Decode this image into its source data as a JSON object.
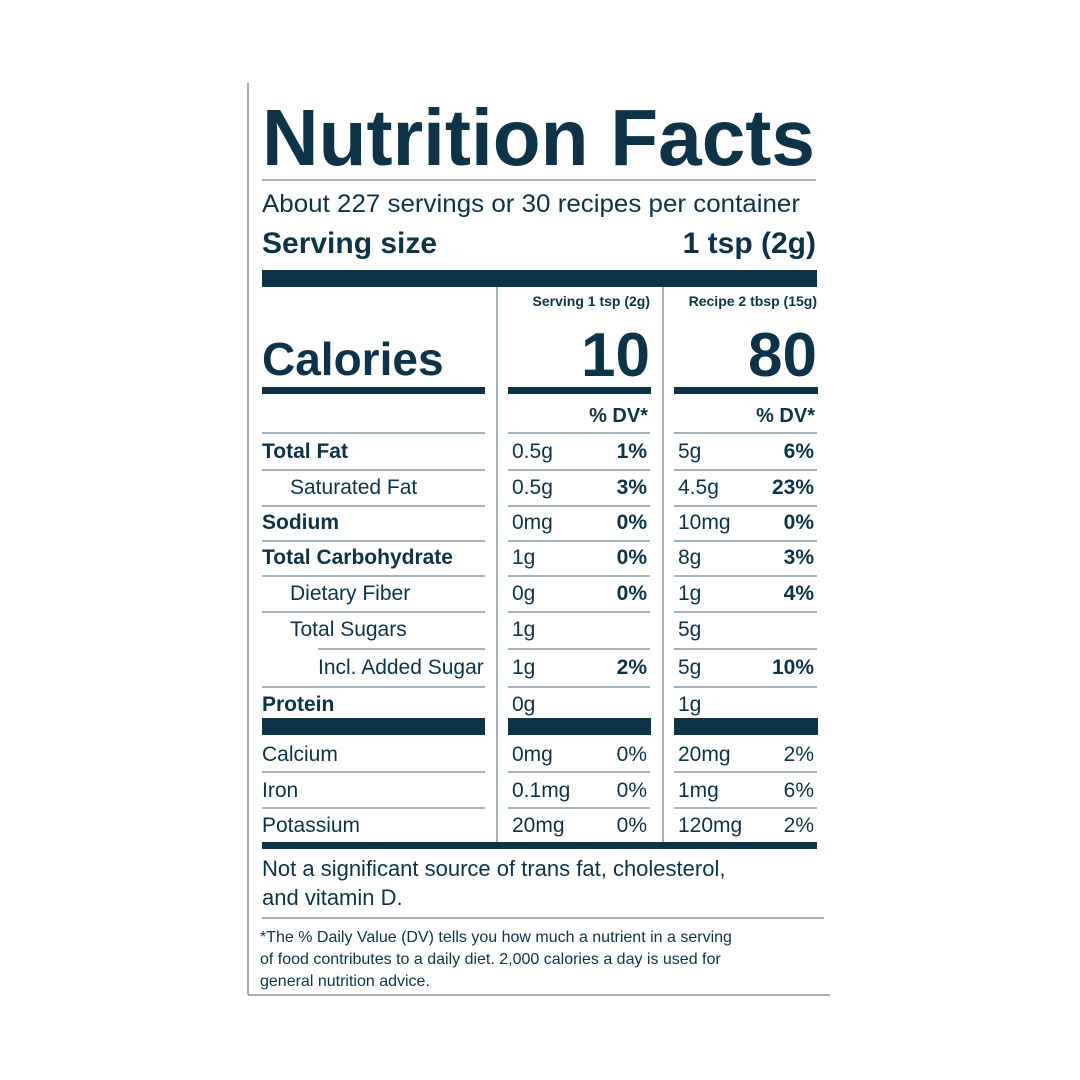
{
  "title": "Nutrition Facts",
  "servings_per_container": "About 227 servings or 30 recipes per container",
  "serving_size": {
    "label": "Serving size",
    "value": "1 tsp (2g)"
  },
  "calories_label": "Calories",
  "columns": [
    {
      "header": "Serving 1 tsp (2g)",
      "calories": "10",
      "dv_header": "% DV*"
    },
    {
      "header": "Recipe 2 tbsp (15g)",
      "calories": "80",
      "dv_header": "% DV*"
    }
  ],
  "nutrients": [
    {
      "name": "Total Fat",
      "bold": true,
      "indent": 0,
      "values": [
        {
          "amount": "0.5g",
          "dv": "1%"
        },
        {
          "amount": "5g",
          "dv": "6%"
        }
      ]
    },
    {
      "name": "Saturated Fat",
      "bold": false,
      "indent": 1,
      "values": [
        {
          "amount": "0.5g",
          "dv": "3%"
        },
        {
          "amount": "4.5g",
          "dv": "23%"
        }
      ]
    },
    {
      "name": "Sodium",
      "bold": true,
      "indent": 0,
      "values": [
        {
          "amount": "0mg",
          "dv": "0%"
        },
        {
          "amount": "10mg",
          "dv": "0%"
        }
      ]
    },
    {
      "name": "Total Carbohydrate",
      "bold": true,
      "indent": 0,
      "values": [
        {
          "amount": "1g",
          "dv": "0%"
        },
        {
          "amount": "8g",
          "dv": "3%"
        }
      ]
    },
    {
      "name": "Dietary Fiber",
      "bold": false,
      "indent": 1,
      "values": [
        {
          "amount": "0g",
          "dv": "0%"
        },
        {
          "amount": "1g",
          "dv": "4%"
        }
      ]
    },
    {
      "name": "Total Sugars",
      "bold": false,
      "indent": 1,
      "values": [
        {
          "amount": "1g"
        },
        {
          "amount": "5g"
        }
      ]
    },
    {
      "name": "Incl. Added Sugar",
      "bold": false,
      "indent": 2,
      "values": [
        {
          "amount": "1g",
          "dv": "2%"
        },
        {
          "amount": "5g",
          "dv": "10%"
        }
      ]
    },
    {
      "name": "Protein",
      "bold": true,
      "indent": 0,
      "values": [
        {
          "amount": "0g"
        },
        {
          "amount": "1g"
        }
      ]
    }
  ],
  "minerals": [
    {
      "name": "Calcium",
      "values": [
        {
          "amount": "0mg",
          "dv": "0%"
        },
        {
          "amount": "20mg",
          "dv": "2%"
        }
      ]
    },
    {
      "name": "Iron",
      "values": [
        {
          "amount": "0.1mg",
          "dv": "0%"
        },
        {
          "amount": "1mg",
          "dv": "6%"
        }
      ]
    },
    {
      "name": "Potassium",
      "values": [
        {
          "amount": "20mg",
          "dv": "0%"
        },
        {
          "amount": "120mg",
          "dv": "2%"
        }
      ]
    }
  ],
  "note_lines": [
    "Not a significant source of trans fat, cholesterol,",
    "and vitamin D."
  ],
  "footnote_lines": [
    "*The % Daily Value (DV) tells you how much a nutrient in a serving",
    "of food contributes to a daily diet. 2,000 calories a day is used for",
    "general nutrition advice."
  ]
}
